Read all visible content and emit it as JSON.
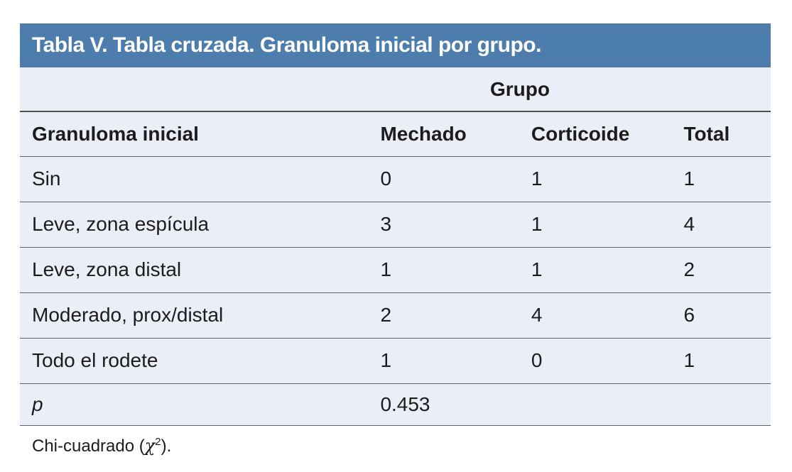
{
  "table": {
    "title": "Tabla V. Tabla cruzada. Granuloma inicial por grupo.",
    "title_bg_color": "#4d7dac",
    "title_text_color": "#ffffff",
    "body_bg_color": "#eaeef6",
    "group_header": "Grupo",
    "columns": {
      "label": "Granuloma inicial",
      "mechado": "Mechado",
      "corticoide": "Corticoide",
      "total": "Total"
    },
    "rows": [
      {
        "label": "Sin",
        "mechado": "0",
        "corticoide": "1",
        "total": "1"
      },
      {
        "label": "Leve, zona espícula",
        "mechado": "3",
        "corticoide": "1",
        "total": "4"
      },
      {
        "label": "Leve, zona distal",
        "mechado": "1",
        "corticoide": "1",
        "total": "2"
      },
      {
        "label": "Moderado, prox/distal",
        "mechado": "2",
        "corticoide": "4",
        "total": "6"
      },
      {
        "label": "Todo el rodete",
        "mechado": "1",
        "corticoide": "0",
        "total": "1"
      }
    ],
    "p_row": {
      "label": "p",
      "value": "0.453"
    },
    "footnote": {
      "prefix": "Chi-cuadrado (",
      "symbol": "χ",
      "superscript": "2",
      "suffix": ")."
    }
  }
}
